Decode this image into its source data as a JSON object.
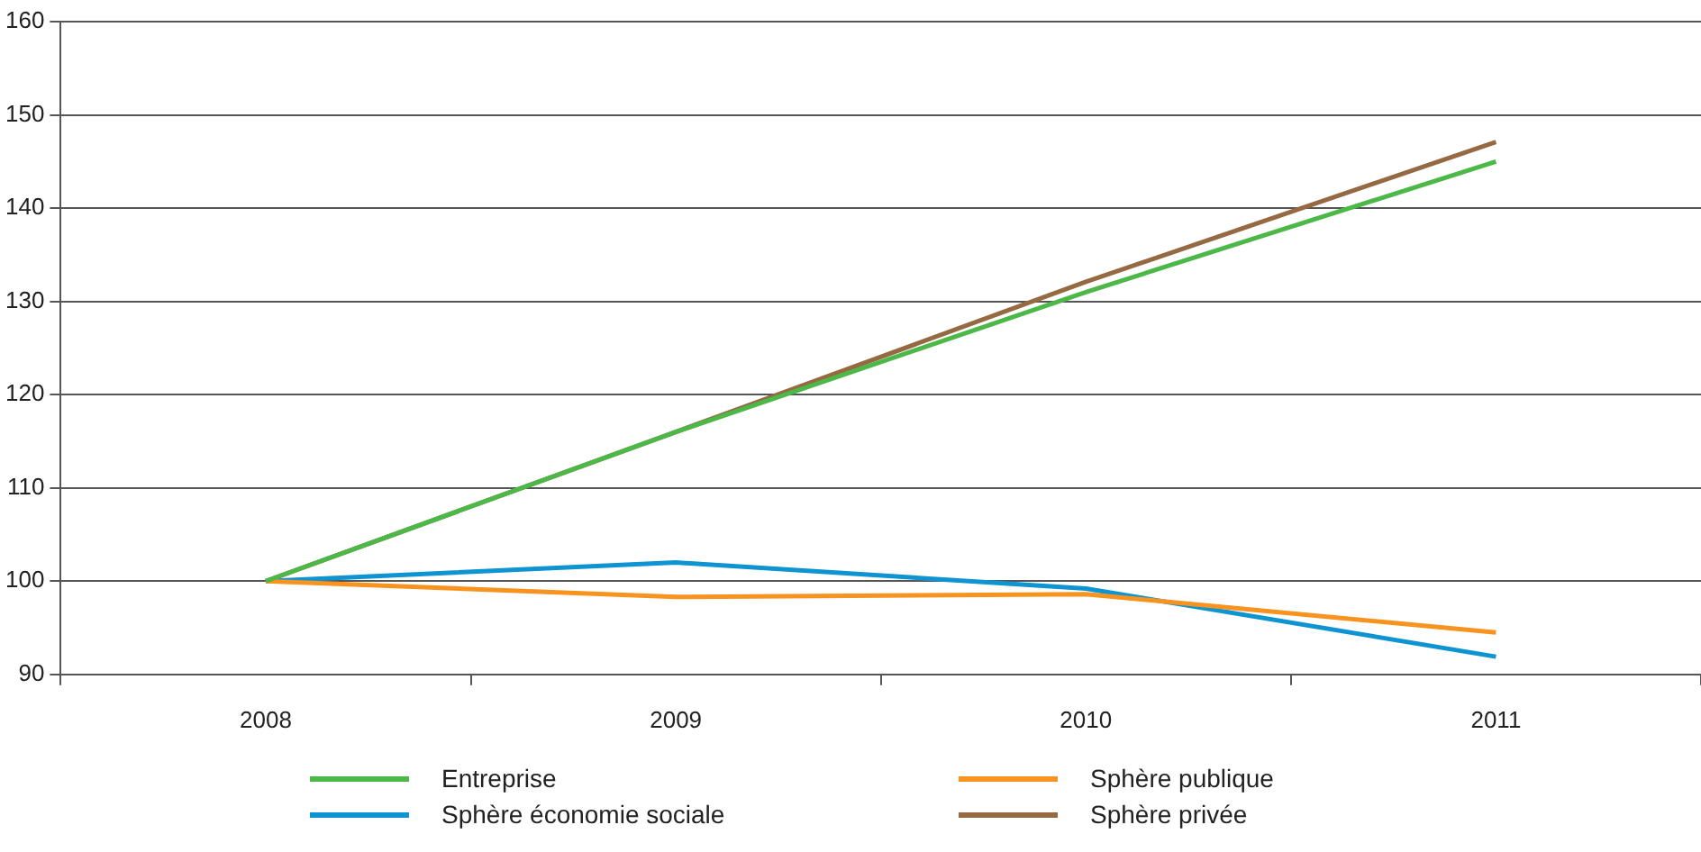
{
  "chart_data": {
    "type": "line",
    "categories": [
      "2008",
      "2009",
      "2010",
      "2011"
    ],
    "series": [
      {
        "name": "Entreprise",
        "color": "#4cb848",
        "values": [
          100,
          116,
          131,
          145
        ]
      },
      {
        "name": "Sphère publique",
        "color": "#f7931e",
        "values": [
          100,
          98.3,
          98.6,
          94.5
        ]
      },
      {
        "name": "Sphère économie sociale",
        "color": "#0f94d2",
        "values": [
          100,
          102,
          99.2,
          91.9
        ]
      },
      {
        "name": "Sphère privée",
        "color": "#956a42",
        "values": [
          100,
          116,
          132.1,
          147.1
        ]
      }
    ],
    "ylim": [
      90,
      160
    ],
    "yticks": [
      90,
      100,
      110,
      120,
      130,
      140,
      150,
      160
    ],
    "grid": "y",
    "legend": "bottom",
    "marker": "none",
    "line_style": "solid"
  }
}
